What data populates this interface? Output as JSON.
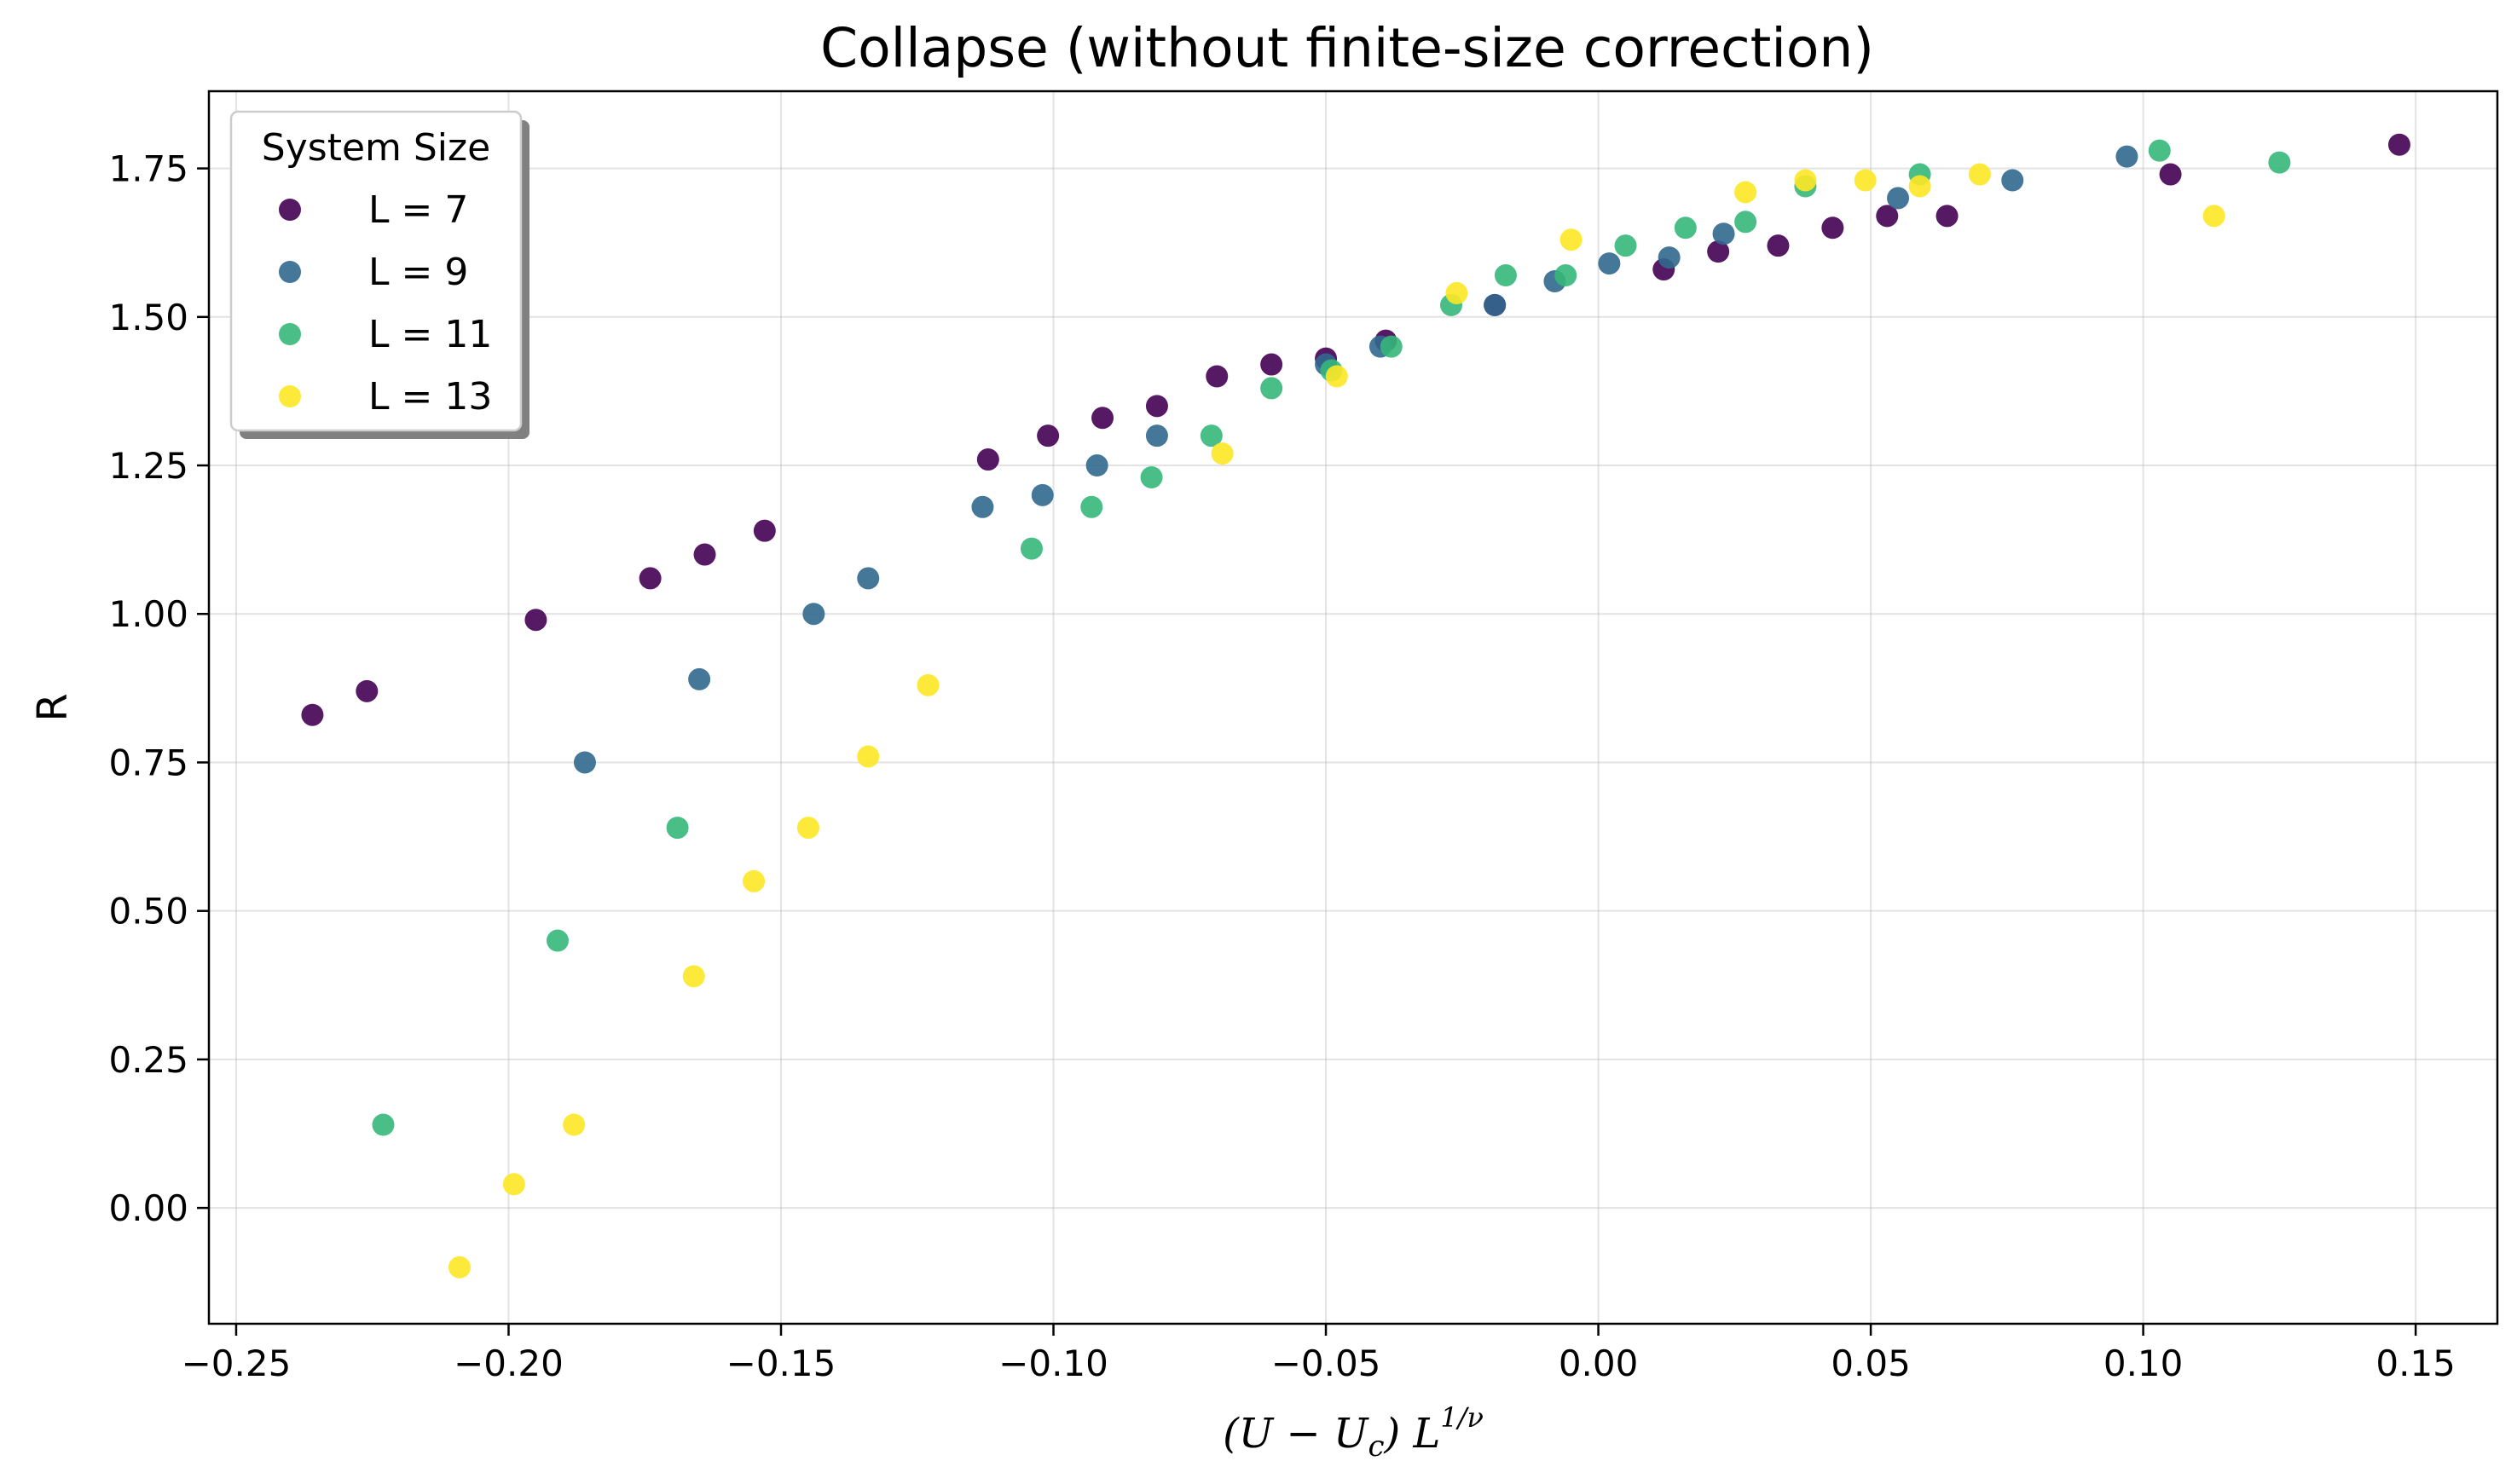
{
  "chart_data": {
    "type": "scatter",
    "title": "Collapse (without finite-size correction)",
    "xlabel": "(U - U_c) L^(1/ν)",
    "ylabel": "R",
    "xlim": [
      -0.255,
      0.165
    ],
    "ylim": [
      -0.195,
      1.88
    ],
    "x_ticks": [
      -0.25,
      -0.2,
      -0.15,
      -0.1,
      -0.05,
      0.0,
      0.05,
      0.1,
      0.15
    ],
    "x_tick_labels": [
      "−0.25",
      "−0.20",
      "−0.15",
      "−0.10",
      "−0.05",
      "0.00",
      "0.05",
      "0.10",
      "0.15"
    ],
    "y_ticks": [
      0.0,
      0.25,
      0.5,
      0.75,
      1.0,
      1.25,
      1.5,
      1.75
    ],
    "y_tick_labels": [
      "0.00",
      "0.25",
      "0.50",
      "0.75",
      "1.00",
      "1.25",
      "1.50",
      "1.75"
    ],
    "grid": true,
    "legend": {
      "title": "System Size",
      "placement": "upper-left"
    },
    "series": [
      {
        "name": "L = 7",
        "color": "#440154",
        "x": [
          -0.236,
          -0.226,
          -0.195,
          -0.174,
          -0.164,
          -0.153,
          -0.112,
          -0.101,
          -0.091,
          -0.081,
          -0.07,
          -0.06,
          -0.05,
          -0.039,
          -0.019,
          0.012,
          0.022,
          0.033,
          0.043,
          0.053,
          0.064,
          0.105,
          0.147
        ],
        "y": [
          0.83,
          0.87,
          0.99,
          1.06,
          1.1,
          1.14,
          1.26,
          1.3,
          1.33,
          1.35,
          1.4,
          1.42,
          1.43,
          1.46,
          1.52,
          1.58,
          1.61,
          1.62,
          1.65,
          1.67,
          1.67,
          1.74,
          1.79
        ]
      },
      {
        "name": "L = 9",
        "color": "#31688e",
        "x": [
          -0.186,
          -0.165,
          -0.144,
          -0.134,
          -0.113,
          -0.102,
          -0.092,
          -0.081,
          -0.05,
          -0.04,
          -0.019,
          -0.008,
          0.002,
          0.013,
          0.023,
          0.055,
          0.076,
          0.097
        ],
        "y": [
          0.75,
          0.89,
          1.0,
          1.06,
          1.18,
          1.2,
          1.25,
          1.3,
          1.42,
          1.45,
          1.52,
          1.56,
          1.59,
          1.6,
          1.64,
          1.7,
          1.73,
          1.77
        ]
      },
      {
        "name": "L = 11",
        "color": "#35b779",
        "x": [
          -0.223,
          -0.191,
          -0.169,
          -0.104,
          -0.093,
          -0.082,
          -0.071,
          -0.06,
          -0.049,
          -0.038,
          -0.027,
          -0.017,
          -0.006,
          0.005,
          0.016,
          0.027,
          0.038,
          0.059,
          0.103,
          0.125
        ],
        "y": [
          0.14,
          0.45,
          0.64,
          1.11,
          1.18,
          1.23,
          1.3,
          1.38,
          1.41,
          1.45,
          1.52,
          1.57,
          1.57,
          1.62,
          1.65,
          1.66,
          1.72,
          1.74,
          1.78,
          1.76
        ]
      },
      {
        "name": "L = 13",
        "color": "#fde725",
        "x": [
          -0.209,
          -0.199,
          -0.188,
          -0.166,
          -0.155,
          -0.145,
          -0.134,
          -0.123,
          -0.069,
          -0.048,
          -0.026,
          -0.005,
          0.027,
          0.038,
          0.049,
          0.059,
          0.07,
          0.113
        ],
        "y": [
          -0.1,
          0.04,
          0.14,
          0.39,
          0.55,
          0.64,
          0.76,
          0.88,
          1.27,
          1.4,
          1.54,
          1.63,
          1.71,
          1.73,
          1.73,
          1.72,
          1.74,
          1.67
        ]
      }
    ]
  }
}
